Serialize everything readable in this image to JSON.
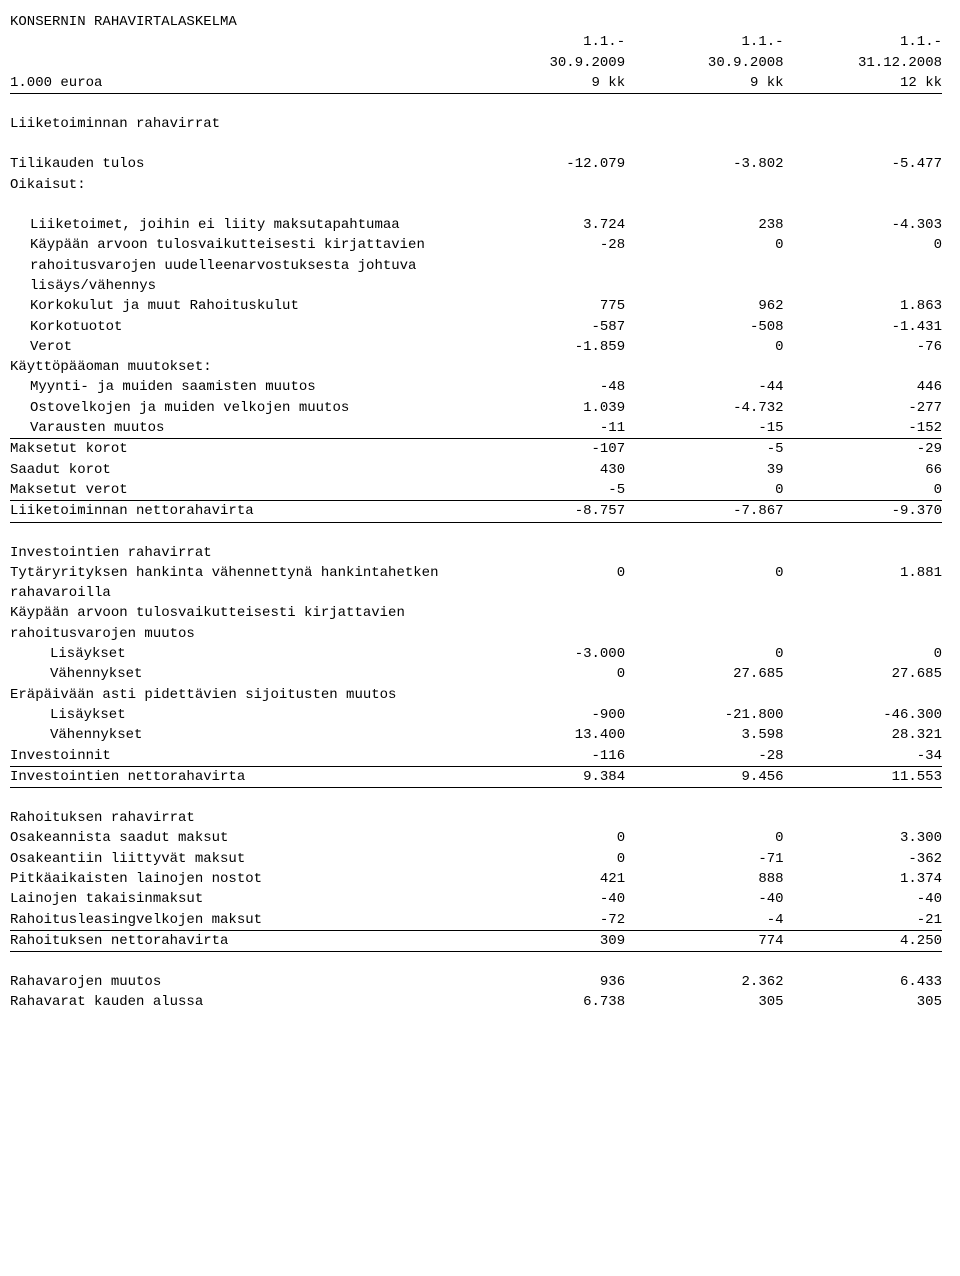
{
  "title": "KONSERNIN RAHAVIRTALASKELMA",
  "hdr": {
    "p1a": "1.1.-",
    "p1b": "30.9.2009",
    "p1c": "9 kk",
    "p2a": "1.1.-",
    "p2b": "30.9.2008",
    "p2c": "9 kk",
    "p3a": "1.1.-",
    "p3b": "31.12.2008",
    "p3c": "12 kk",
    "unit": "1.000 euroa"
  },
  "s1": {
    "h": "Liiketoiminnan rahavirrat",
    "r1": {
      "l": "Tilikauden tulos",
      "a": "-12.079",
      "b": "-3.802",
      "c": "-5.477"
    },
    "r2": {
      "l": "Oikaisut:"
    },
    "r3": {
      "l": "Liiketoimet, joihin ei liity maksutapahtumaa",
      "a": "3.724",
      "b": "238",
      "c": "-4.303"
    },
    "r4": {
      "l": "Käypään arvoon tulosvaikutteisesti kirjattavien rahoitusvarojen uudelleenarvostuksesta johtuva lisäys/vähennys",
      "a": "-28",
      "b": "0",
      "c": "0"
    },
    "r5": {
      "l": "Korkokulut ja muut Rahoituskulut",
      "a": "775",
      "b": "962",
      "c": "1.863"
    },
    "r6": {
      "l": "Korkotuotot",
      "a": "-587",
      "b": "-508",
      "c": "-1.431"
    },
    "r7": {
      "l": "Verot",
      "a": "-1.859",
      "b": "0",
      "c": "-76"
    },
    "r8": {
      "l": "Käyttöpääoman muutokset:"
    },
    "r9": {
      "l": "Myynti- ja muiden saamisten muutos",
      "a": "-48",
      "b": "-44",
      "c": "446"
    },
    "r10": {
      "l": "Ostovelkojen ja muiden velkojen muutos",
      "a": "1.039",
      "b": "-4.732",
      "c": "-277"
    },
    "r11": {
      "l": "Varausten muutos",
      "a": "-11",
      "b": "-15",
      "c": "-152"
    },
    "r12": {
      "l": "Maksetut korot",
      "a": "-107",
      "b": "-5",
      "c": "-29"
    },
    "r13": {
      "l": "Saadut korot",
      "a": "430",
      "b": "39",
      "c": "66"
    },
    "r14": {
      "l": "Maksetut verot",
      "a": "-5",
      "b": "0",
      "c": "0"
    },
    "r15": {
      "l": "Liiketoiminnan nettorahavirta",
      "a": "-8.757",
      "b": "-7.867",
      "c": "-9.370"
    }
  },
  "s2": {
    "h": "Investointien rahavirrat",
    "r1": {
      "l": "Tytäryrityksen hankinta vähennettynä hankintahetken rahavaroilla",
      "a": "0",
      "b": "0",
      "c": "1.881"
    },
    "r2": {
      "l": "Käypään arvoon tulosvaikutteisesti kirjattavien rahoitusvarojen muutos"
    },
    "r3": {
      "l": "Lisäykset",
      "a": "-3.000",
      "b": "0",
      "c": "0"
    },
    "r4": {
      "l": "Vähennykset",
      "a": "0",
      "b": "27.685",
      "c": "27.685"
    },
    "r5": {
      "l": "Eräpäivään asti pidettävien sijoitusten muutos"
    },
    "r6": {
      "l": "Lisäykset",
      "a": "-900",
      "b": "-21.800",
      "c": "-46.300"
    },
    "r7": {
      "l": "Vähennykset",
      "a": "13.400",
      "b": "3.598",
      "c": "28.321"
    },
    "r8": {
      "l": "Investoinnit",
      "a": "-116",
      "b": "-28",
      "c": "-34"
    },
    "r9": {
      "l": "Investointien nettorahavirta",
      "a": "9.384",
      "b": "9.456",
      "c": "11.553"
    }
  },
  "s3": {
    "h": "Rahoituksen rahavirrat",
    "r1": {
      "l": "Osakeannista saadut maksut",
      "a": "0",
      "b": "0",
      "c": "3.300"
    },
    "r2": {
      "l": "Osakeantiin liittyvät maksut",
      "a": "0",
      "b": "-71",
      "c": "-362"
    },
    "r3": {
      "l": "Pitkäaikaisten lainojen nostot",
      "a": "421",
      "b": "888",
      "c": "1.374"
    },
    "r4": {
      "l": "Lainojen takaisinmaksut",
      "a": "-40",
      "b": "-40",
      "c": "-40"
    },
    "r5": {
      "l": "Rahoitusleasingvelkojen maksut",
      "a": "-72",
      "b": "-4",
      "c": "-21"
    },
    "r6": {
      "l": "Rahoituksen nettorahavirta",
      "a": "309",
      "b": "774",
      "c": "4.250"
    }
  },
  "s4": {
    "r1": {
      "l": "Rahavarojen muutos",
      "a": "936",
      "b": "2.362",
      "c": "6.433"
    },
    "r2": {
      "l": "Rahavarat kauden alussa",
      "a": "6.738",
      "b": "305",
      "c": "305"
    }
  }
}
